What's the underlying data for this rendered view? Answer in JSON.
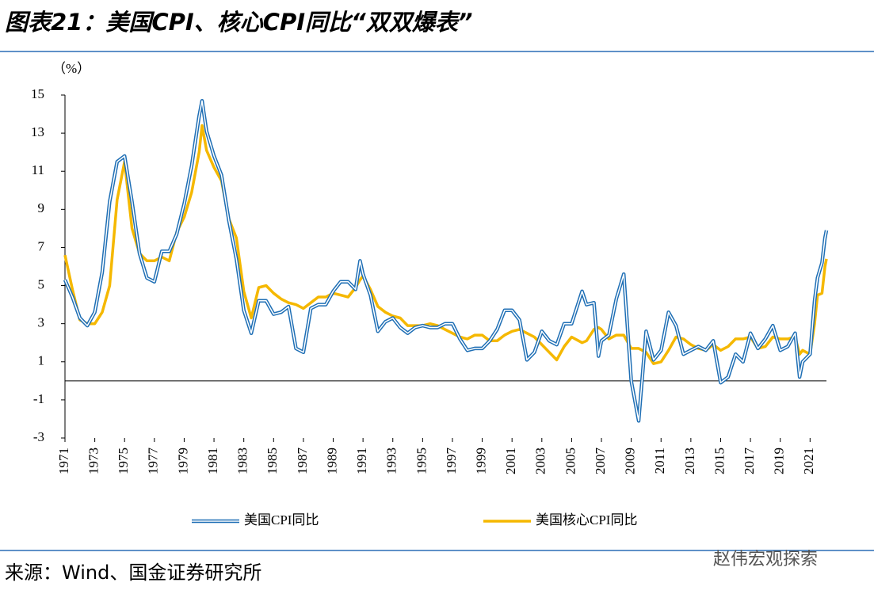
{
  "chart_data": {
    "type": "line",
    "title": "图表21：美国CPI、核心CPI同比“双双爆表”",
    "y_label": "（%）",
    "source": "来源：Wind、国金证券研究所",
    "watermark": "赵伟宏观探索",
    "x": [
      1971.0,
      1971.5,
      1972.0,
      1972.5,
      1973.0,
      1973.5,
      1974.0,
      1974.5,
      1975.0,
      1975.5,
      1976.0,
      1976.5,
      1977.0,
      1977.5,
      1978.0,
      1978.5,
      1979.0,
      1979.5,
      1980.0,
      1980.2,
      1980.5,
      1981.0,
      1981.5,
      1982.0,
      1982.5,
      1983.0,
      1983.5,
      1984.0,
      1984.5,
      1985.0,
      1985.5,
      1986.0,
      1986.5,
      1987.0,
      1987.5,
      1988.0,
      1988.5,
      1989.0,
      1989.5,
      1990.0,
      1990.5,
      1990.8,
      1991.0,
      1991.5,
      1992.0,
      1992.5,
      1993.0,
      1993.5,
      1994.0,
      1994.5,
      1995.0,
      1995.5,
      1996.0,
      1996.5,
      1997.0,
      1997.5,
      1998.0,
      1998.5,
      1999.0,
      1999.5,
      2000.0,
      2000.5,
      2001.0,
      2001.5,
      2002.0,
      2002.5,
      2003.0,
      2003.5,
      2004.0,
      2004.5,
      2005.0,
      2005.7,
      2006.0,
      2006.5,
      2006.8,
      2007.0,
      2007.5,
      2008.0,
      2008.5,
      2009.0,
      2009.5,
      2010.0,
      2010.5,
      2011.0,
      2011.5,
      2012.0,
      2012.5,
      2013.0,
      2013.5,
      2014.0,
      2014.5,
      2015.0,
      2015.5,
      2016.0,
      2016.5,
      2017.0,
      2017.5,
      2018.0,
      2018.5,
      2019.0,
      2019.5,
      2020.0,
      2020.3,
      2020.5,
      2021.0,
      2021.3,
      2021.5,
      2021.8,
      2022.0,
      2022.1
    ],
    "series": [
      {
        "name": "美国CPI同比",
        "color": "#1f6fb5",
        "style": "double",
        "values": [
          5.3,
          4.4,
          3.3,
          2.9,
          3.6,
          5.7,
          9.4,
          11.5,
          11.8,
          9.4,
          6.7,
          5.4,
          5.2,
          6.8,
          6.8,
          7.7,
          9.3,
          11.3,
          13.9,
          14.7,
          13.1,
          11.8,
          10.8,
          8.4,
          6.4,
          3.7,
          2.5,
          4.2,
          4.2,
          3.5,
          3.6,
          3.9,
          1.7,
          1.5,
          3.8,
          4.0,
          4.0,
          4.7,
          5.2,
          5.2,
          4.8,
          6.3,
          5.6,
          4.5,
          2.6,
          3.1,
          3.3,
          2.8,
          2.5,
          2.8,
          2.9,
          2.8,
          2.8,
          3.0,
          3.0,
          2.2,
          1.6,
          1.7,
          1.7,
          2.1,
          2.7,
          3.7,
          3.7,
          3.2,
          1.1,
          1.5,
          2.6,
          2.1,
          1.9,
          3.0,
          3.0,
          4.7,
          4.0,
          4.1,
          1.3,
          2.1,
          2.4,
          4.3,
          5.6,
          0.0,
          -2.1,
          2.6,
          1.1,
          1.6,
          3.6,
          2.9,
          1.4,
          1.6,
          1.8,
          1.6,
          2.1,
          -0.1,
          0.2,
          1.4,
          1.0,
          2.5,
          1.7,
          2.2,
          2.9,
          1.6,
          1.8,
          2.5,
          0.2,
          1.0,
          1.4,
          4.2,
          5.4,
          6.2,
          7.5,
          7.9
        ]
      },
      {
        "name": "美国核心CPI同比",
        "color": "#f5b800",
        "style": "solid",
        "values": [
          6.6,
          4.8,
          3.2,
          3.0,
          3.0,
          3.6,
          5.0,
          9.5,
          11.5,
          8.0,
          6.7,
          6.3,
          6.3,
          6.5,
          6.3,
          7.8,
          8.6,
          9.9,
          12.0,
          13.4,
          12.1,
          11.2,
          10.5,
          8.5,
          7.5,
          4.7,
          3.3,
          4.9,
          5.0,
          4.6,
          4.3,
          4.1,
          4.0,
          3.8,
          4.1,
          4.4,
          4.4,
          4.6,
          4.5,
          4.4,
          4.9,
          5.3,
          5.5,
          4.8,
          3.9,
          3.6,
          3.4,
          3.3,
          2.9,
          2.9,
          2.9,
          3.0,
          2.9,
          2.7,
          2.5,
          2.3,
          2.2,
          2.4,
          2.4,
          2.1,
          2.1,
          2.4,
          2.6,
          2.7,
          2.5,
          2.3,
          1.9,
          1.5,
          1.1,
          1.8,
          2.3,
          2.0,
          2.1,
          2.7,
          2.8,
          2.7,
          2.2,
          2.4,
          2.4,
          1.7,
          1.7,
          1.5,
          0.9,
          1.0,
          1.6,
          2.3,
          2.2,
          1.9,
          1.7,
          1.6,
          1.9,
          1.6,
          1.8,
          2.2,
          2.2,
          2.3,
          1.7,
          1.8,
          2.3,
          2.2,
          2.2,
          2.3,
          1.4,
          1.6,
          1.4,
          3.0,
          4.5,
          4.6,
          6.0,
          6.4
        ]
      }
    ],
    "xlim": [
      1971,
      2022.1
    ],
    "xticks": [
      1971,
      1973,
      1975,
      1977,
      1979,
      1981,
      1983,
      1985,
      1987,
      1989,
      1991,
      1993,
      1995,
      1997,
      1999,
      2001,
      2003,
      2005,
      2007,
      2009,
      2011,
      2013,
      2015,
      2017,
      2019,
      2021
    ],
    "ylim": [
      -3,
      15
    ],
    "yticks": [
      -3,
      -1,
      1,
      3,
      5,
      7,
      9,
      11,
      13,
      15
    ],
    "grid": false,
    "legend": "bottom"
  }
}
